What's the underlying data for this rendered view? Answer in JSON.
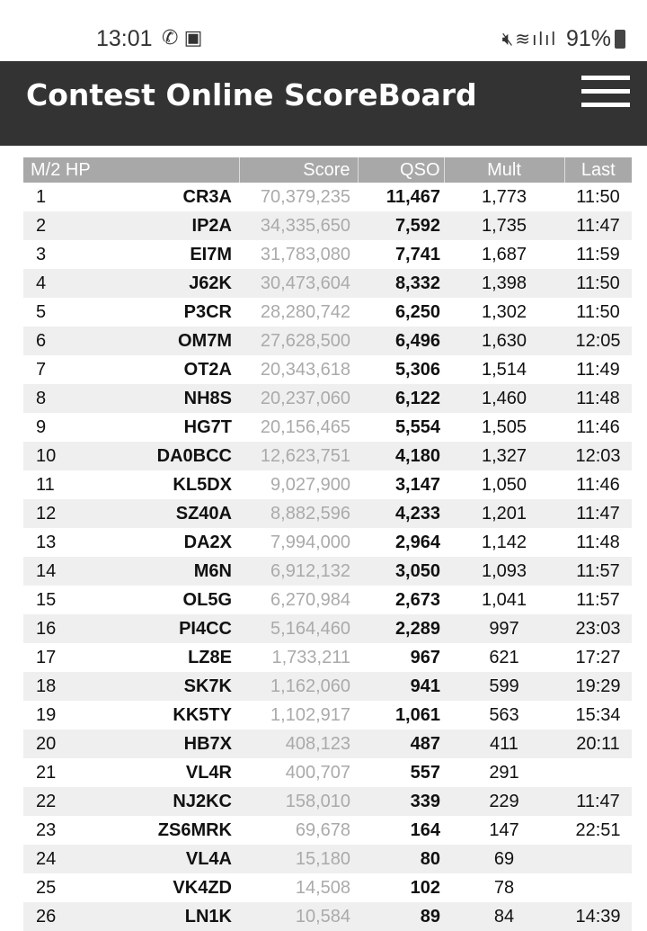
{
  "status_bar": {
    "time": "13:01",
    "battery": "91%",
    "left_icons": [
      "whatsapp-icon",
      "gallery-icon"
    ],
    "right_icons": [
      "mute-icon",
      "wifi-icon",
      "signal-icon",
      "signal-icon"
    ]
  },
  "header": {
    "title": "Contest Online ScoreBoard",
    "menu_icon": "hamburger-icon"
  },
  "table": {
    "category": "M/2 HP",
    "columns": {
      "score": "Score",
      "qso": "QSO",
      "mult": "Mult",
      "last": "Last"
    },
    "rows": [
      {
        "rank": "1",
        "call": "CR3A",
        "score": "70,379,235",
        "qso": "11,467",
        "mult": "1,773",
        "last": "11:50"
      },
      {
        "rank": "2",
        "call": "IP2A",
        "score": "34,335,650",
        "qso": "7,592",
        "mult": "1,735",
        "last": "11:47"
      },
      {
        "rank": "3",
        "call": "EI7M",
        "score": "31,783,080",
        "qso": "7,741",
        "mult": "1,687",
        "last": "11:59"
      },
      {
        "rank": "4",
        "call": "J62K",
        "score": "30,473,604",
        "qso": "8,332",
        "mult": "1,398",
        "last": "11:50"
      },
      {
        "rank": "5",
        "call": "P3CR",
        "score": "28,280,742",
        "qso": "6,250",
        "mult": "1,302",
        "last": "11:50"
      },
      {
        "rank": "6",
        "call": "OM7M",
        "score": "27,628,500",
        "qso": "6,496",
        "mult": "1,630",
        "last": "12:05"
      },
      {
        "rank": "7",
        "call": "OT2A",
        "score": "20,343,618",
        "qso": "5,306",
        "mult": "1,514",
        "last": "11:49"
      },
      {
        "rank": "8",
        "call": "NH8S",
        "score": "20,237,060",
        "qso": "6,122",
        "mult": "1,460",
        "last": "11:48"
      },
      {
        "rank": "9",
        "call": "HG7T",
        "score": "20,156,465",
        "qso": "5,554",
        "mult": "1,505",
        "last": "11:46"
      },
      {
        "rank": "10",
        "call": "DA0BCC",
        "score": "12,623,751",
        "qso": "4,180",
        "mult": "1,327",
        "last": "12:03"
      },
      {
        "rank": "11",
        "call": "KL5DX",
        "score": "9,027,900",
        "qso": "3,147",
        "mult": "1,050",
        "last": "11:46"
      },
      {
        "rank": "12",
        "call": "SZ40A",
        "score": "8,882,596",
        "qso": "4,233",
        "mult": "1,201",
        "last": "11:47"
      },
      {
        "rank": "13",
        "call": "DA2X",
        "score": "7,994,000",
        "qso": "2,964",
        "mult": "1,142",
        "last": "11:48"
      },
      {
        "rank": "14",
        "call": "M6N",
        "score": "6,912,132",
        "qso": "3,050",
        "mult": "1,093",
        "last": "11:57"
      },
      {
        "rank": "15",
        "call": "OL5G",
        "score": "6,270,984",
        "qso": "2,673",
        "mult": "1,041",
        "last": "11:57"
      },
      {
        "rank": "16",
        "call": "PI4CC",
        "score": "5,164,460",
        "qso": "2,289",
        "mult": "997",
        "last": "23:03"
      },
      {
        "rank": "17",
        "call": "LZ8E",
        "score": "1,733,211",
        "qso": "967",
        "mult": "621",
        "last": "17:27"
      },
      {
        "rank": "18",
        "call": "SK7K",
        "score": "1,162,060",
        "qso": "941",
        "mult": "599",
        "last": "19:29"
      },
      {
        "rank": "19",
        "call": "KK5TY",
        "score": "1,102,917",
        "qso": "1,061",
        "mult": "563",
        "last": "15:34"
      },
      {
        "rank": "20",
        "call": "HB7X",
        "score": "408,123",
        "qso": "487",
        "mult": "411",
        "last": "20:11"
      },
      {
        "rank": "21",
        "call": "VL4R",
        "score": "400,707",
        "qso": "557",
        "mult": "291",
        "last": ""
      },
      {
        "rank": "22",
        "call": "NJ2KC",
        "score": "158,010",
        "qso": "339",
        "mult": "229",
        "last": "11:47"
      },
      {
        "rank": "23",
        "call": "ZS6MRK",
        "score": "69,678",
        "qso": "164",
        "mult": "147",
        "last": "22:51"
      },
      {
        "rank": "24",
        "call": "VL4A",
        "score": "15,180",
        "qso": "80",
        "mult": "69",
        "last": ""
      },
      {
        "rank": "25",
        "call": "VK4ZD",
        "score": "14,508",
        "qso": "102",
        "mult": "78",
        "last": ""
      },
      {
        "rank": "26",
        "call": "LN1K",
        "score": "10,584",
        "qso": "89",
        "mult": "84",
        "last": "14:39"
      }
    ]
  }
}
